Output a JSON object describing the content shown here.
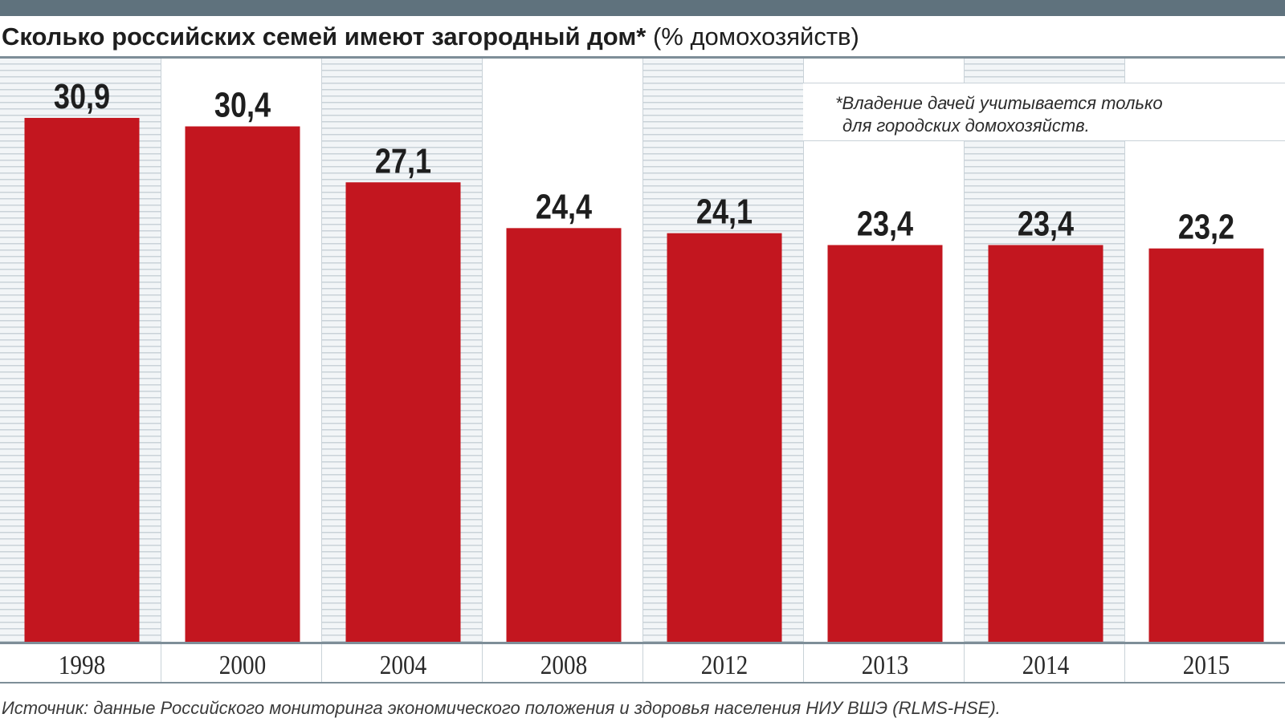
{
  "colors": {
    "bar": "#c3161f",
    "stripe_light": "#f2f5f7",
    "stripe_line": "#c9d2d8",
    "top_bar": "#5f727d",
    "rule": "#7e8e98",
    "text": "#1e1e1e"
  },
  "header": {
    "title": "Сколько российских семей имеют загородный дом*",
    "subtitle": " (% домохозяйств)"
  },
  "note": {
    "line1": "*Владение дачей учитывается только",
    "line2": "для городских домохозяйств."
  },
  "source": "Источник: данные Российского мониторинга экономического положения и здоровья населения НИУ ВШЭ (RLMS-HSE).",
  "chart_data": {
    "type": "bar",
    "title": "Сколько российских семей имеют загородный дом* (% домохозяйств)",
    "categories": [
      "1998",
      "2000",
      "2004",
      "2008",
      "2012",
      "2013",
      "2014",
      "2015"
    ],
    "values": [
      30.9,
      30.4,
      27.1,
      24.4,
      24.1,
      23.4,
      23.4,
      23.2
    ],
    "value_labels": [
      "30,9",
      "30,4",
      "27,1",
      "24,4",
      "24,1",
      "23,4",
      "23,4",
      "23,2"
    ],
    "ylim": [
      0,
      34.4
    ],
    "grid": false,
    "legend": "none"
  }
}
